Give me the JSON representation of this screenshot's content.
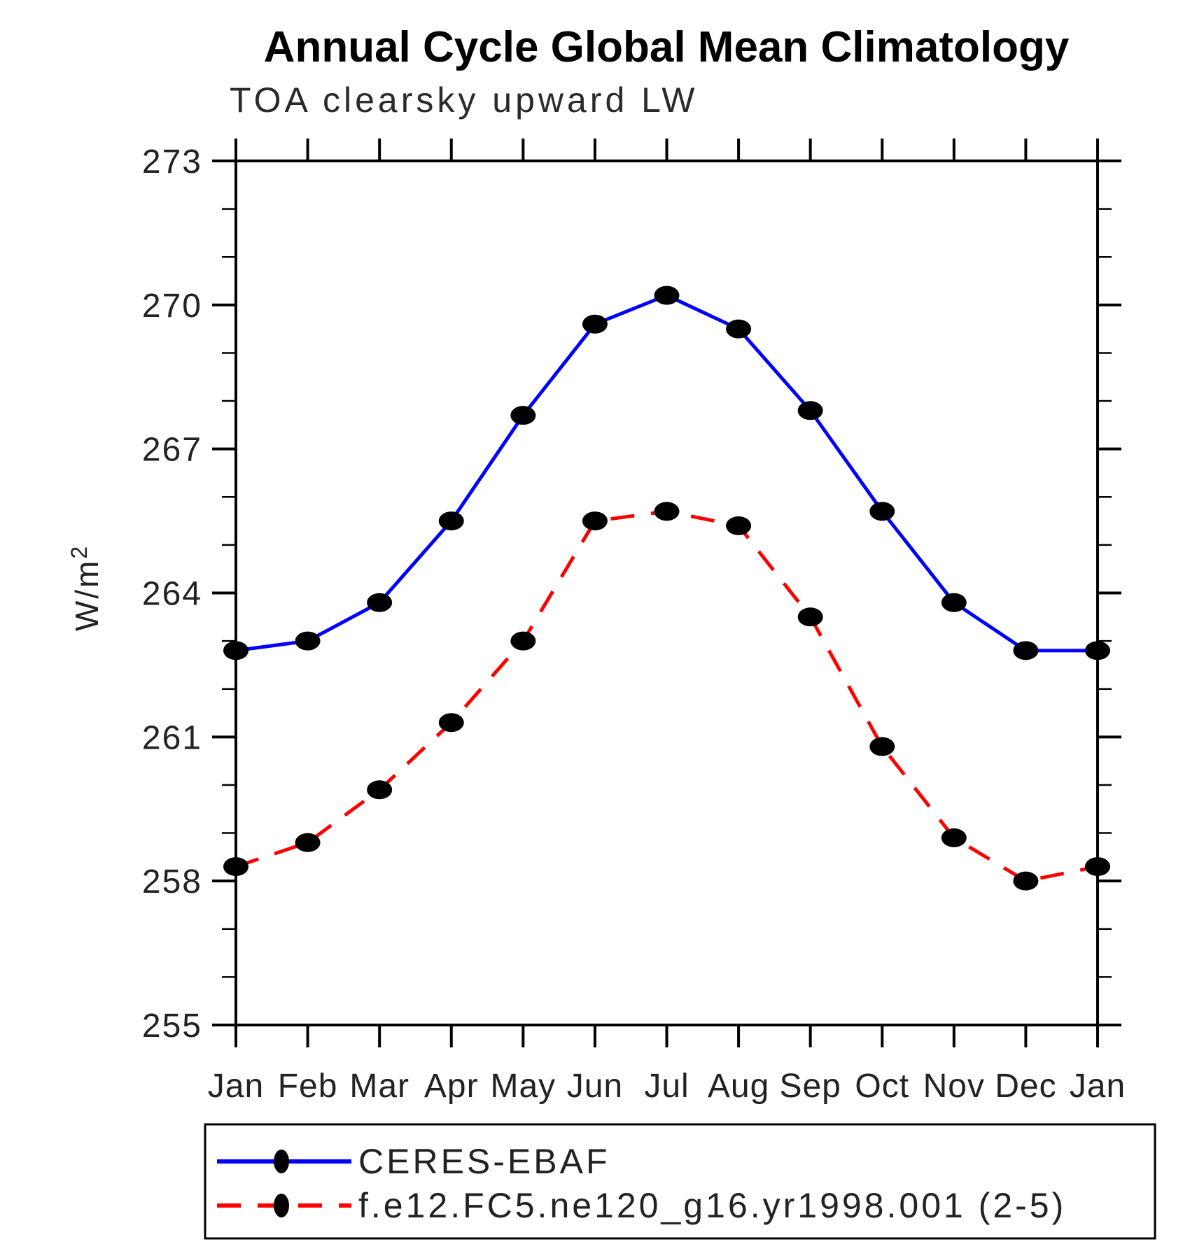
{
  "page": {
    "title": "Annual Cycle Global Mean Climatology",
    "subtitle": "TOA clearsky upward LW"
  },
  "chart_data": {
    "type": "line",
    "title": "Annual Cycle Global Mean Climatology",
    "subtitle": "TOA clearsky upward LW",
    "ylabel": "W/m²",
    "ylabel_base": "W/m",
    "ylabel_exp": "2",
    "x_categories": [
      "Jan",
      "Feb",
      "Mar",
      "Apr",
      "May",
      "Jun",
      "Jul",
      "Aug",
      "Sep",
      "Oct",
      "Nov",
      "Dec",
      "Jan"
    ],
    "ylim": [
      255,
      273
    ],
    "yticks_major": [
      255,
      258,
      261,
      264,
      267,
      270,
      273
    ],
    "ytick_minor_step": 1,
    "grid": false,
    "legend_position": "bottom",
    "axis_color": "#000000",
    "marker_color": "#000000",
    "series": [
      {
        "name": "CERES-EBAF",
        "color": "#0000ff",
        "style": "solid",
        "values": [
          262.8,
          263.0,
          263.8,
          265.5,
          267.7,
          269.6,
          270.2,
          269.5,
          267.8,
          265.7,
          263.8,
          262.8,
          262.8
        ]
      },
      {
        "name": "f.e12.FC5.ne120_g16.yr1998.001 (2-5)",
        "color": "#ff0000",
        "style": "dashed",
        "values": [
          258.3,
          258.8,
          259.9,
          261.3,
          263.0,
          265.5,
          265.7,
          265.4,
          263.5,
          260.8,
          258.9,
          258.0,
          258.3
        ]
      }
    ]
  }
}
